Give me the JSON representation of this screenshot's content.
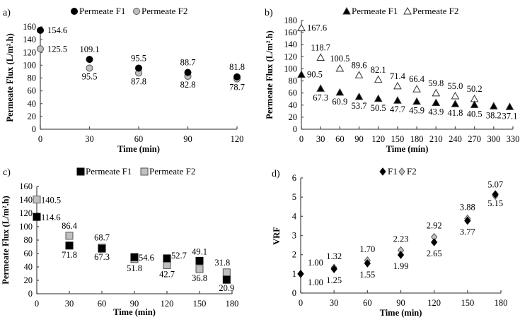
{
  "chart_data": [
    {
      "panel": "a)",
      "type": "scatter",
      "xlabel": "Time (min)",
      "ylabel": "Permeate Flux (L/m².h)",
      "xlim": [
        0,
        120
      ],
      "ylim": [
        0,
        160
      ],
      "xticks": [
        "0",
        "30",
        "60",
        "90",
        "120"
      ],
      "yticks": [
        "0",
        "20",
        "40",
        "60",
        "80",
        "100",
        "120",
        "140",
        "160"
      ],
      "legend": "top",
      "series": [
        {
          "name": "Permeate F1",
          "marker": "circle",
          "fill": "#000000",
          "x": [
            0,
            30,
            60,
            90,
            120
          ],
          "y": [
            154.6,
            109.1,
            95.5,
            88.7,
            81.8
          ],
          "labels": [
            "154.6",
            "109.1",
            "95.5",
            "88.7",
            "81.8"
          ]
        },
        {
          "name": "Permeate F2",
          "marker": "circle",
          "fill": "#c0c0c0",
          "x": [
            0,
            30,
            60,
            90,
            120
          ],
          "y": [
            125.5,
            95.5,
            87.8,
            82.8,
            78.7
          ],
          "labels": [
            "125.5",
            "95.5",
            "87.8",
            "82.8",
            "78.7"
          ]
        }
      ]
    },
    {
      "panel": "b)",
      "type": "scatter",
      "xlabel": "Time (min)",
      "ylabel": "Permeate Flux (L/m².h)",
      "xlim": [
        0,
        330
      ],
      "ylim": [
        0,
        180
      ],
      "xticks": [
        "0",
        "30",
        "60",
        "90",
        "120",
        "150",
        "180",
        "210",
        "240",
        "270",
        "300",
        "330"
      ],
      "yticks": [
        "0",
        "20",
        "40",
        "60",
        "80",
        "100",
        "120",
        "140",
        "160",
        "180"
      ],
      "legend": "top",
      "series": [
        {
          "name": "Permeate F1",
          "marker": "triangle",
          "fill": "#000000",
          "x": [
            0,
            30,
            60,
            90,
            120,
            150,
            180,
            210,
            240,
            270,
            300,
            325
          ],
          "y": [
            90.5,
            67.3,
            60.9,
            53.7,
            50.5,
            47.7,
            45.9,
            43.9,
            41.8,
            40.5,
            38.2,
            37.1
          ],
          "labels": [
            "90.5",
            "67.3",
            "60.9",
            "53.7",
            "50.5",
            "47.7",
            "45.9",
            "43.9",
            "41.8",
            "40.5",
            "38.2",
            "37.1"
          ]
        },
        {
          "name": "Permeate F2",
          "marker": "triangle",
          "fill": "#ffffff",
          "x": [
            0,
            30,
            60,
            90,
            120,
            150,
            180,
            210,
            240,
            270
          ],
          "y": [
            167.6,
            118.7,
            100.5,
            89.6,
            82.1,
            71.4,
            66.4,
            59.8,
            55.0,
            50.2
          ],
          "labels": [
            "167.6",
            "118.7",
            "100.5",
            "89.6",
            "82.1",
            "71.4",
            "66.4",
            "59.8",
            "55.0",
            "50.2"
          ]
        }
      ]
    },
    {
      "panel": "c)",
      "type": "scatter",
      "xlabel": "Time (min)",
      "ylabel": "Permeate Flux (L/m².h)",
      "xlim": [
        0,
        180
      ],
      "ylim": [
        0,
        160
      ],
      "xticks": [
        "0",
        "30",
        "60",
        "90",
        "120",
        "150",
        "180"
      ],
      "yticks": [
        "0",
        "20",
        "40",
        "60",
        "80",
        "100",
        "120",
        "140",
        "160"
      ],
      "legend": "top",
      "series": [
        {
          "name": "Permeate F1",
          "marker": "square",
          "fill": "#000000",
          "x": [
            0,
            30,
            60,
            90,
            120,
            150,
            175
          ],
          "y": [
            114.6,
            71.8,
            67.3,
            54.6,
            52.7,
            49.1,
            20.9
          ],
          "labels": [
            "114.6",
            "71.8",
            "67.3",
            "54.6",
            "52.7",
            "49.1",
            "20.9"
          ]
        },
        {
          "name": "Permeate F2",
          "marker": "square",
          "fill": "#c0c0c0",
          "x": [
            0,
            30,
            60,
            90,
            120,
            150,
            175
          ],
          "y": [
            140.5,
            86.4,
            68.7,
            51.8,
            42.7,
            36.8,
            31.8
          ],
          "labels": [
            "140.5",
            "86.4",
            "68.7",
            "51.8",
            "42.7",
            "36.8",
            "31.8"
          ]
        }
      ]
    },
    {
      "panel": "d)",
      "type": "scatter",
      "xlabel": "Time (min)",
      "ylabel": "VRF",
      "xlim": [
        0,
        180
      ],
      "ylim": [
        0,
        6
      ],
      "xticks": [
        "0",
        "30",
        "60",
        "90",
        "120",
        "150",
        "180"
      ],
      "yticks": [
        "0",
        "1",
        "2",
        "3",
        "4",
        "5",
        "6"
      ],
      "legend": "top",
      "series": [
        {
          "name": "F1",
          "marker": "diamond",
          "fill": "#000000",
          "x": [
            0,
            30,
            60,
            90,
            120,
            150,
            175
          ],
          "y": [
            1.0,
            1.25,
            1.55,
            1.99,
            2.65,
            3.77,
            5.15
          ],
          "labels": [
            "1.00",
            "1.25",
            "1.55",
            "1.99",
            "2.65",
            "3.77",
            "5.15"
          ]
        },
        {
          "name": "F2",
          "marker": "diamond",
          "fill": "#c0c0c0",
          "x": [
            0,
            30,
            60,
            90,
            120,
            150,
            175
          ],
          "y": [
            1.0,
            1.32,
            1.7,
            2.23,
            2.92,
            3.88,
            5.07
          ],
          "labels": [
            "1.00",
            "1.32",
            "1.70",
            "2.23",
            "2.92",
            "3.88",
            "5.07"
          ]
        }
      ]
    }
  ]
}
